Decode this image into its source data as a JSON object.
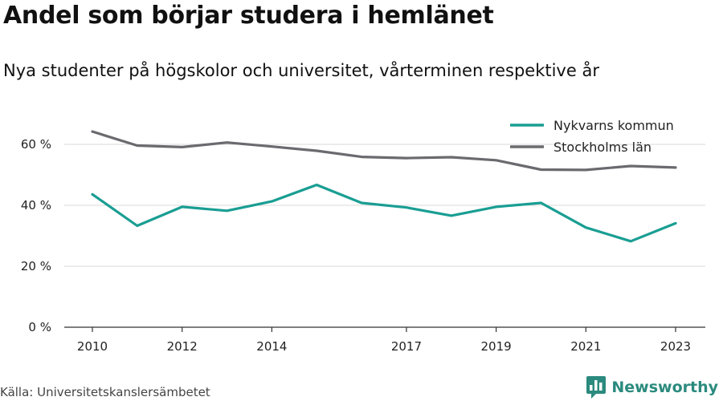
{
  "title": "Andel som börjar studera i hemlänet",
  "subtitle": "Nya studenter på högskolor och universitet, vårterminen respektive år",
  "source": "Källa: Universitetskanslersämbetet",
  "brand": {
    "name": "Newsworthy",
    "logo_icon": "bar-chart-logo-icon"
  },
  "colors": {
    "nykvarn": "#1a9e93",
    "stockholm": "#6a6a6f",
    "grid": "#d9d9d9",
    "axis": "#333333",
    "brand": "#2b8a7e"
  },
  "chart_data": {
    "type": "line",
    "title": "Andel som börjar studera i hemlänet",
    "subtitle": "Nya studenter på högskolor och universitet, vårterminen respektive år",
    "x": [
      2010,
      2011,
      2012,
      2013,
      2014,
      2015,
      2016,
      2017,
      2018,
      2019,
      2020,
      2021,
      2022,
      2023
    ],
    "x_tick_labels": [
      "2010",
      "2012",
      "2014",
      "2017",
      "2019",
      "2021",
      "2023"
    ],
    "y_tick_labels": [
      "0 %",
      "20 %",
      "40 %",
      "60 %"
    ],
    "ylim": [
      0,
      70
    ],
    "grid": "horizontal",
    "legend_position": "top-right",
    "series": [
      {
        "name": "Nykvarns kommun",
        "color": "#1a9e93",
        "values": [
          43.6,
          33.3,
          39.5,
          38.2,
          41.3,
          46.7,
          40.8,
          39.3,
          36.6,
          39.5,
          40.8,
          32.7,
          28.2,
          34.1
        ]
      },
      {
        "name": "Stockholms län",
        "color": "#6a6a6f",
        "values": [
          64.2,
          59.6,
          59.1,
          60.6,
          59.3,
          57.9,
          55.9,
          55.5,
          55.8,
          54.8,
          51.7,
          51.6,
          52.9,
          52.4
        ]
      }
    ]
  }
}
